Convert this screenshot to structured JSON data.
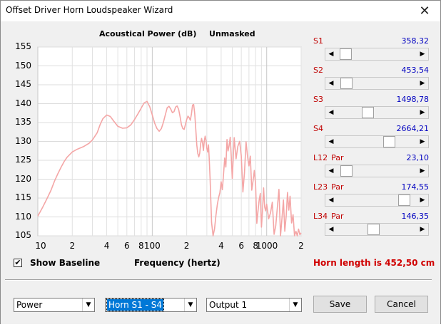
{
  "window": {
    "title": "Offset Driver Horn Loudspeaker Wizard",
    "close_glyph": "✕"
  },
  "chart_header": {
    "title": "Acoustical Power (dB)",
    "mode": "Unmasked"
  },
  "chart_data": {
    "type": "line",
    "title": "Acoustical Power (dB)",
    "subtitle": "Unmasked",
    "xlabel": "Frequency (hertz)",
    "ylabel": "",
    "x_scale": "log",
    "xlim": [
      10,
      2000
    ],
    "ylim": [
      105,
      155
    ],
    "ytick_labels": [
      "155",
      "150",
      "145",
      "140",
      "135",
      "130",
      "125",
      "120",
      "115",
      "110",
      "105"
    ],
    "xtick_labels": [
      "10",
      "2",
      "4",
      "6",
      "8",
      "100",
      "2",
      "4",
      "6",
      "8",
      "1000",
      "2"
    ],
    "line_color": "#f4a6a6",
    "grid": true,
    "series": [
      {
        "x": [
          10,
          11,
          12,
          13,
          14,
          15,
          16,
          17,
          18,
          20,
          22,
          25,
          28,
          30,
          33,
          35,
          37,
          40,
          43,
          46,
          50,
          55,
          60,
          65,
          70,
          75,
          80,
          85,
          90,
          95,
          100,
          105,
          110,
          115,
          120,
          125,
          130,
          135,
          140,
          145,
          150,
          155,
          160,
          165,
          170,
          175,
          180,
          185,
          190,
          195,
          200,
          205,
          210,
          215,
          220,
          225,
          230,
          235,
          240,
          245,
          250,
          255,
          260,
          265,
          270,
          275,
          280,
          285,
          290,
          295,
          300,
          305,
          310,
          315,
          320,
          330,
          340,
          350,
          360,
          370,
          380,
          390,
          400,
          410,
          420,
          430,
          440,
          450,
          460,
          470,
          480,
          490,
          500,
          520,
          540,
          560,
          580,
          600,
          620,
          640,
          660,
          680,
          700,
          720,
          740,
          760,
          780,
          800,
          820,
          840,
          860,
          880,
          900,
          920,
          940,
          960,
          980,
          1000,
          1040,
          1080,
          1120,
          1160,
          1200,
          1240,
          1280,
          1320,
          1360,
          1400,
          1440,
          1480,
          1520,
          1560,
          1600,
          1650,
          1700,
          1750,
          1800,
          1850,
          1900,
          1950,
          2000
        ],
        "y": [
          110.2,
          112.5,
          114.8,
          117,
          119.5,
          121.5,
          123.2,
          124.7,
          125.8,
          127.2,
          127.9,
          128.6,
          129.5,
          130.4,
          132.3,
          134.4,
          136,
          137,
          136.6,
          135.4,
          134,
          133.5,
          133.6,
          134.4,
          135.8,
          137.3,
          138.8,
          140.2,
          140.6,
          139.2,
          137,
          134.8,
          133.4,
          132.7,
          133.4,
          135,
          137,
          138.9,
          139.3,
          138.6,
          137.6,
          137.9,
          139.1,
          139.4,
          138.5,
          136.6,
          134.4,
          133.4,
          133.2,
          134.5,
          135.8,
          136.7,
          136.3,
          135.6,
          137.3,
          139.6,
          139.8,
          137.3,
          133.4,
          129,
          126.8,
          125.9,
          126.9,
          129.4,
          130.8,
          129.6,
          127.6,
          130.2,
          131.4,
          130.2,
          128.1,
          127.2,
          129.1,
          125,
          120.2,
          108.5,
          104,
          106.8,
          110.4,
          113.2,
          115.1,
          116.4,
          119.3,
          117.2,
          121.4,
          125.6,
          123.2,
          130.5,
          127.5,
          128.9,
          131.1,
          126.2,
          120.2,
          131,
          125.4,
          128.7,
          130,
          126.2,
          116.6,
          121.7,
          129.9,
          126,
          123.5,
          126.1,
          117.1,
          119.5,
          122.3,
          118.5,
          108.3,
          111.6,
          114.5,
          116.2,
          107.3,
          111.8,
          117.7,
          112.6,
          111.6,
          113.4,
          109.5,
          111.1,
          113.9,
          105.4,
          107.6,
          112.6,
          117.3,
          104.7,
          109.5,
          114.5,
          106.2,
          110.1,
          116.5,
          111.8,
          115.5,
          108.4,
          110.6,
          104.4,
          106.2,
          104.8,
          106.8,
          105.3,
          105.8
        ]
      }
    ]
  },
  "sliders": [
    {
      "label": "S1",
      "suffix": "",
      "value": "358,32",
      "position_fraction": 0.04
    },
    {
      "label": "S2",
      "suffix": "",
      "value": "453,54",
      "position_fraction": 0.05
    },
    {
      "label": "S3",
      "suffix": "",
      "value": "1498,78",
      "position_fraction": 0.37
    },
    {
      "label": "S4",
      "suffix": "",
      "value": "2664,21",
      "position_fraction": 0.68
    },
    {
      "label": "L12",
      "suffix": "Par",
      "value": "23,10",
      "position_fraction": 0.05
    },
    {
      "label": "L23",
      "suffix": "Par",
      "value": "174,55",
      "position_fraction": 0.9
    },
    {
      "label": "L34",
      "suffix": "Par",
      "value": "146,35",
      "position_fraction": 0.45
    }
  ],
  "bottom": {
    "show_baseline_label": "Show Baseline",
    "show_baseline_checked": "✔",
    "frequency_label": "Frequency (hertz)",
    "horn_length_text": "Horn length is 452,50 cm",
    "select_type": "Power",
    "select_horn": "Horn S1 - S4",
    "select_output": "Output 1",
    "save_label": "Save",
    "cancel_label": "Cancel",
    "dropdown_glyph": "▼"
  }
}
